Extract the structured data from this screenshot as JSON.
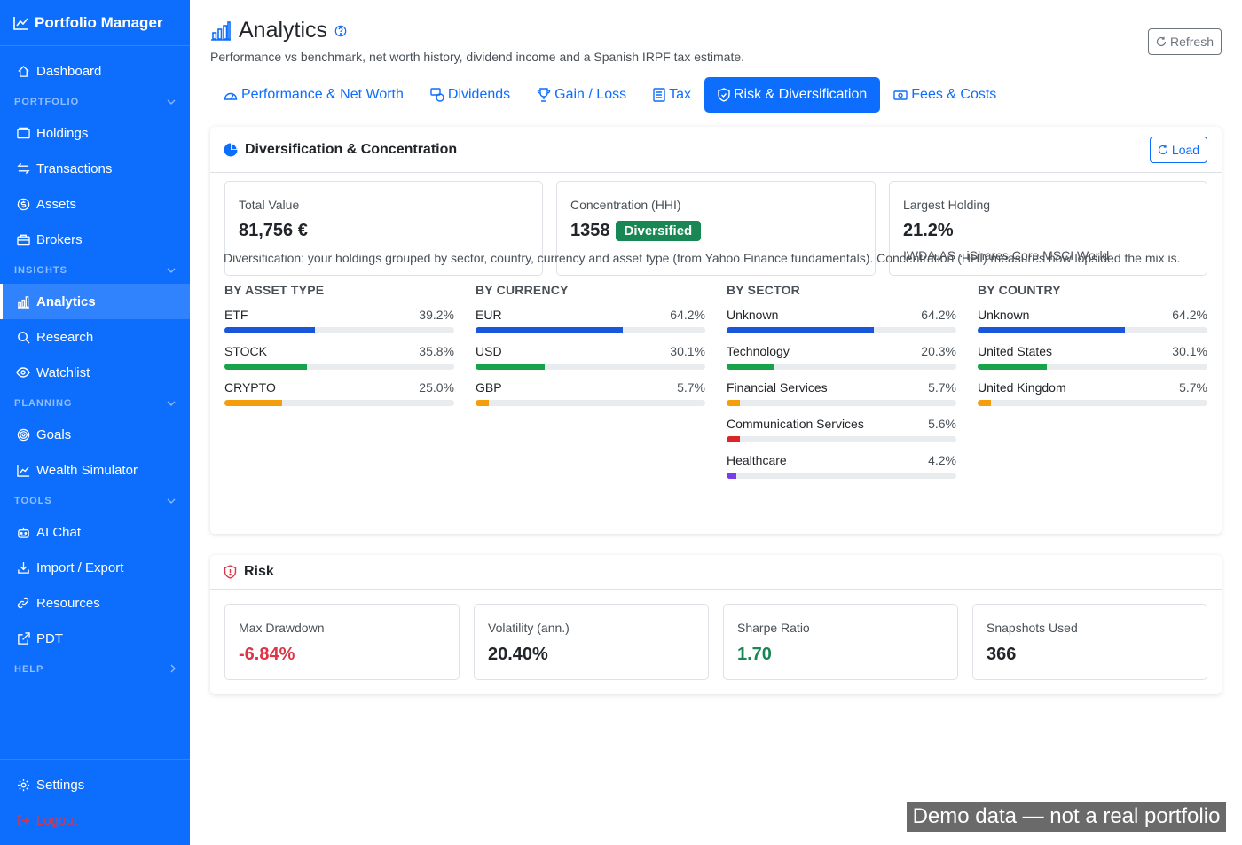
{
  "sidebar": {
    "brand": "Portfolio Manager",
    "dashboard": "Dashboard",
    "sections": {
      "portfolio": "PORTFOLIO",
      "insights": "INSIGHTS",
      "planning": "PLANNING",
      "tools": "TOOLS",
      "help": "HELP"
    },
    "items": {
      "holdings": "Holdings",
      "transactions": "Transactions",
      "assets": "Assets",
      "brokers": "Brokers",
      "analytics": "Analytics",
      "research": "Research",
      "watchlist": "Watchlist",
      "goals": "Goals",
      "wealth_simulator": "Wealth Simulator",
      "ai_chat": "AI Chat",
      "import_export": "Import / Export",
      "resources": "Resources",
      "pdt": "PDT",
      "settings": "Settings",
      "logout": "Logout"
    }
  },
  "header": {
    "title": "Analytics",
    "subtitle": "Performance vs benchmark, net worth history, dividend income and a Spanish IRPF tax estimate.",
    "refresh_label": "Refresh"
  },
  "tabs": [
    {
      "label": "Performance & Net Worth"
    },
    {
      "label": "Dividends"
    },
    {
      "label": "Gain / Loss"
    },
    {
      "label": "Tax"
    },
    {
      "label": "Risk & Diversification"
    },
    {
      "label": "Fees & Costs"
    }
  ],
  "diversification": {
    "title": "Diversification & Concentration",
    "load_label": "Load",
    "total_value": {
      "label": "Total Value",
      "value": "81,756 €"
    },
    "hhi": {
      "label": "Concentration (HHI)",
      "value": "1358",
      "badge": "Diversified"
    },
    "largest": {
      "label": "Largest Holding",
      "value": "21.2%",
      "sub": "IWDA.AS · iShares Core MSCI World"
    },
    "description": "Diversification: your holdings grouped by sector, country, currency and asset type (from Yahoo Finance fundamentals). Concentration (HHI) measures how lopsided the mix is.",
    "groups": [
      {
        "title": "BY ASSET TYPE",
        "rows": [
          {
            "name": "ETF",
            "pct": "39.2%",
            "value": 39.2,
            "color": "#1a56db"
          },
          {
            "name": "STOCK",
            "pct": "35.8%",
            "value": 35.8,
            "color": "#16a34a"
          },
          {
            "name": "CRYPTO",
            "pct": "25.0%",
            "value": 25.0,
            "color": "#f59e0b"
          }
        ]
      },
      {
        "title": "BY CURRENCY",
        "rows": [
          {
            "name": "EUR",
            "pct": "64.2%",
            "value": 64.2,
            "color": "#1a56db"
          },
          {
            "name": "USD",
            "pct": "30.1%",
            "value": 30.1,
            "color": "#16a34a"
          },
          {
            "name": "GBP",
            "pct": "5.7%",
            "value": 5.7,
            "color": "#f59e0b"
          }
        ]
      },
      {
        "title": "BY SECTOR",
        "rows": [
          {
            "name": "Unknown",
            "pct": "64.2%",
            "value": 64.2,
            "color": "#1a56db"
          },
          {
            "name": "Technology",
            "pct": "20.3%",
            "value": 20.3,
            "color": "#16a34a"
          },
          {
            "name": "Financial Services",
            "pct": "5.7%",
            "value": 5.7,
            "color": "#f59e0b"
          },
          {
            "name": "Communication Services",
            "pct": "5.6%",
            "value": 5.6,
            "color": "#dc2626"
          },
          {
            "name": "Healthcare",
            "pct": "4.2%",
            "value": 4.2,
            "color": "#7c3aed"
          }
        ]
      },
      {
        "title": "BY COUNTRY",
        "rows": [
          {
            "name": "Unknown",
            "pct": "64.2%",
            "value": 64.2,
            "color": "#1a56db"
          },
          {
            "name": "United States",
            "pct": "30.1%",
            "value": 30.1,
            "color": "#16a34a"
          },
          {
            "name": "United Kingdom",
            "pct": "5.7%",
            "value": 5.7,
            "color": "#f59e0b"
          }
        ]
      }
    ]
  },
  "risk": {
    "title": "Risk",
    "max_drawdown": {
      "label": "Max Drawdown",
      "value": "-6.84%"
    },
    "volatility": {
      "label": "Volatility (ann.)",
      "value": "20.40%"
    },
    "sharpe": {
      "label": "Sharpe Ratio",
      "value": "1.70"
    },
    "snapshots": {
      "label": "Snapshots Used",
      "value": "366"
    }
  },
  "watermark": "Demo data — not a real portfolio",
  "colors": {
    "primary": "#0d6efd",
    "success": "#198754",
    "danger": "#dc3545"
  }
}
